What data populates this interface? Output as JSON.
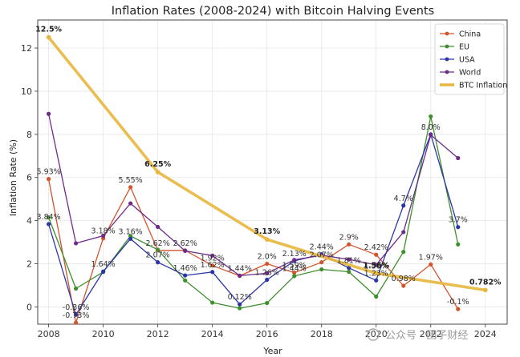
{
  "chart_data": {
    "type": "line",
    "title": "Inflation Rates (2008-2024) with Bitcoin Halving Events",
    "xlabel": "Year",
    "ylabel": "Inflation Rate (%)",
    "xlim": [
      2007.6,
      2024.8
    ],
    "ylim": [
      -0.8,
      13.3
    ],
    "xticks": [
      "2008",
      "2010",
      "2012",
      "2014",
      "2016",
      "2018",
      "2020",
      "2022",
      "2024"
    ],
    "yticks": [
      "0",
      "2",
      "4",
      "6",
      "8",
      "10",
      "12"
    ],
    "grid": true,
    "legend_position": "top-right",
    "series": [
      {
        "name": "China",
        "color": "#d1552d",
        "x": [
          2008,
          2009,
          2010,
          2011,
          2012,
          2013,
          2014,
          2015,
          2016,
          2017,
          2018,
          2019,
          2020,
          2021,
          2022,
          2023
        ],
        "y": [
          5.93,
          -0.73,
          3.18,
          5.55,
          2.62,
          2.62,
          1.92,
          1.44,
          2.0,
          1.59,
          2.07,
          2.9,
          2.42,
          0.98,
          1.97,
          -0.1
        ]
      },
      {
        "name": "EU",
        "color": "#3f8f2d",
        "x": [
          2008,
          2009,
          2010,
          2011,
          2012,
          2013,
          2014,
          2015,
          2016,
          2017,
          2018,
          2019,
          2020,
          2021,
          2022,
          2023
        ],
        "y": [
          4.15,
          0.85,
          1.62,
          3.29,
          2.65,
          1.23,
          0.2,
          -0.06,
          0.18,
          1.43,
          1.74,
          1.63,
          0.48,
          2.55,
          8.83,
          2.9
        ]
      },
      {
        "name": "USA",
        "color": "#2b35a8",
        "x": [
          2008,
          2009,
          2010,
          2011,
          2012,
          2013,
          2014,
          2015,
          2016,
          2017,
          2018,
          2019,
          2020,
          2021,
          2022,
          2023
        ],
        "y": [
          3.84,
          -0.36,
          1.64,
          3.16,
          2.07,
          1.46,
          1.62,
          0.12,
          1.26,
          2.13,
          2.44,
          1.81,
          1.23,
          4.7,
          8.0,
          3.7
        ]
      },
      {
        "name": "World",
        "color": "#6e2a8a",
        "x": [
          2008,
          2009,
          2010,
          2011,
          2012,
          2013,
          2014,
          2015,
          2016,
          2017,
          2018,
          2019,
          2020,
          2021,
          2022,
          2023
        ],
        "y": [
          8.95,
          2.95,
          3.3,
          4.8,
          3.71,
          2.6,
          2.38,
          1.45,
          1.56,
          2.18,
          2.4,
          2.2,
          1.95,
          3.47,
          7.97,
          6.9
        ]
      },
      {
        "name": "BTC Inflation",
        "color": "#e8b63c",
        "x": [
          2008,
          2012,
          2016,
          2020,
          2024
        ],
        "y": [
          12.5,
          6.25,
          3.13,
          1.56,
          0.782
        ]
      }
    ],
    "annotations": [
      {
        "text": "5.93%",
        "x": 2008,
        "y": 5.93
      },
      {
        "text": "3.84%",
        "x": 2008,
        "y": 3.84
      },
      {
        "text": "-0.73%",
        "x": 2009,
        "y": -0.73
      },
      {
        "text": "-0.36%",
        "x": 2009,
        "y": -0.36
      },
      {
        "text": "3.18%",
        "x": 2010,
        "y": 3.18
      },
      {
        "text": "1.64%",
        "x": 2010,
        "y": 1.64
      },
      {
        "text": "5.55%",
        "x": 2011,
        "y": 5.55
      },
      {
        "text": "3.16%",
        "x": 2011,
        "y": 3.16
      },
      {
        "text": "2.62%",
        "x": 2012,
        "y": 2.62
      },
      {
        "text": "2.07%",
        "x": 2012,
        "y": 2.07
      },
      {
        "text": "2.62%",
        "x": 2013,
        "y": 2.62
      },
      {
        "text": "1.46%",
        "x": 2013,
        "y": 1.46
      },
      {
        "text": "1.92%",
        "x": 2014,
        "y": 1.92
      },
      {
        "text": "1.62%",
        "x": 2014,
        "y": 1.62
      },
      {
        "text": "1.44%",
        "x": 2015,
        "y": 1.44
      },
      {
        "text": "0.12%",
        "x": 2015,
        "y": 0.12
      },
      {
        "text": "2.0%",
        "x": 2016,
        "y": 2.0
      },
      {
        "text": "1.26%",
        "x": 2016,
        "y": 1.26
      },
      {
        "text": "1.59%",
        "x": 2017,
        "y": 1.59
      },
      {
        "text": "2.13%",
        "x": 2017,
        "y": 2.13
      },
      {
        "text": "1.44%",
        "x": 2017,
        "y": 1.44
      },
      {
        "text": "2.07%",
        "x": 2018,
        "y": 2.07
      },
      {
        "text": "2.44%",
        "x": 2018,
        "y": 2.44
      },
      {
        "text": "2.9%",
        "x": 2019,
        "y": 2.9
      },
      {
        "text": "1.81%",
        "x": 2019,
        "y": 1.81
      },
      {
        "text": "2.42%",
        "x": 2020,
        "y": 2.42
      },
      {
        "text": "1.56%",
        "x": 2020,
        "y": 1.56
      },
      {
        "text": "1.23%",
        "x": 2020,
        "y": 1.23
      },
      {
        "text": "4.7%",
        "x": 2021,
        "y": 4.7
      },
      {
        "text": "0.98%",
        "x": 2021,
        "y": 0.98
      },
      {
        "text": "8.0%",
        "x": 2022,
        "y": 8.0
      },
      {
        "text": "1.97%",
        "x": 2022,
        "y": 1.97
      },
      {
        "text": "3.7%",
        "x": 2023,
        "y": 3.7
      },
      {
        "text": "-0.1%",
        "x": 2023,
        "y": -0.1
      }
    ],
    "btc_annotations": [
      {
        "text": "12.5%",
        "x": 2008,
        "y": 12.5
      },
      {
        "text": "6.25%",
        "x": 2012,
        "y": 6.25
      },
      {
        "text": "3.13%",
        "x": 2016,
        "y": 3.13
      },
      {
        "text": "1.56%",
        "x": 2020,
        "y": 1.56
      },
      {
        "text": "0.782%",
        "x": 2024,
        "y": 0.782
      }
    ]
  },
  "watermark": "公众号 · 团子财经"
}
